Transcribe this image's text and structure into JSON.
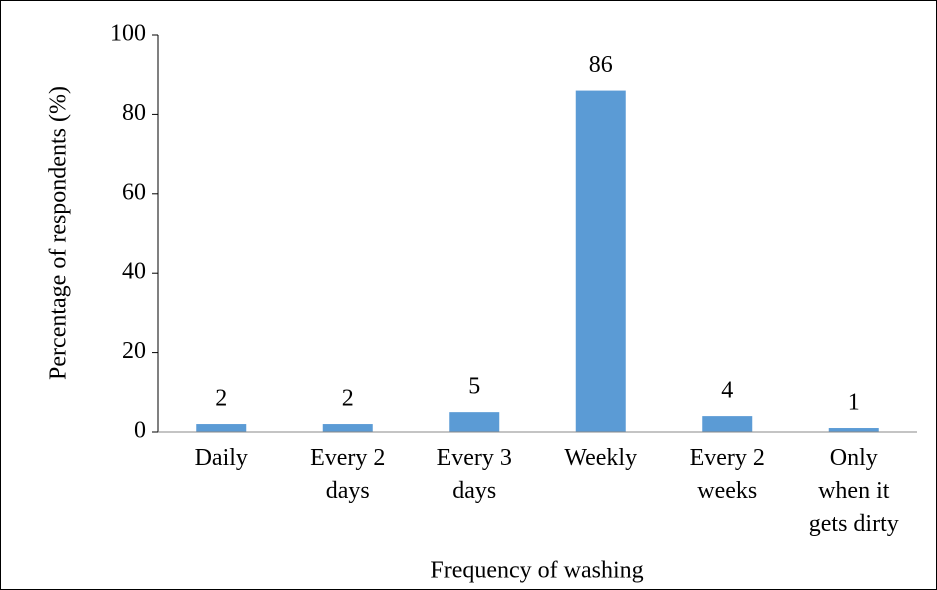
{
  "chart_data": {
    "type": "bar",
    "categories": [
      "Daily",
      "Every 2 days",
      "Every 3 days",
      "Weekly",
      "Every 2 weeks",
      "Only when it gets dirty"
    ],
    "values": [
      2,
      2,
      5,
      86,
      4,
      1
    ],
    "color": "#5b9bd5",
    "x_label": "Frequency of washing",
    "y_label": "Percentage of respondents (%)",
    "ylim": [
      0,
      100
    ],
    "yticks": [
      0,
      20,
      40,
      60,
      80,
      100
    ],
    "grid": false
  }
}
